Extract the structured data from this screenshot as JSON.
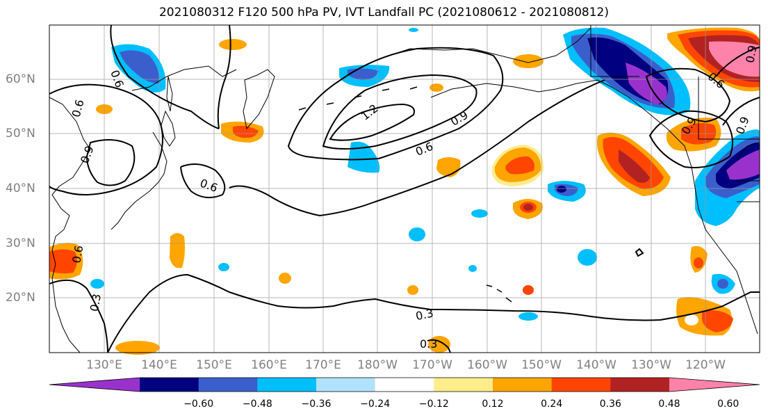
{
  "title": "2021080312 F120 500 hPa PV, IVT Landfall PC (2021080612 - 2021080812)",
  "lat_ticks": [
    "60°N",
    "50°N",
    "40°N",
    "30°N",
    "20°N"
  ],
  "lon_ticks": [
    "130°E",
    "140°E",
    "150°E",
    "160°E",
    "170°E",
    "180°W",
    "170°W",
    "160°W",
    "150°W",
    "140°W",
    "130°W",
    "120°W"
  ],
  "contour_labels": [
    "1.2",
    "0.9",
    "0.6",
    "0.6",
    "0.9",
    "0.6",
    "0.6",
    "0.3",
    "0.3",
    "0.3",
    "0.6",
    "0.9",
    "0.6",
    "0.9",
    "0.9"
  ],
  "colorbar": {
    "labels": [
      "−0.60",
      "−0.48",
      "−0.36",
      "−0.24",
      "−0.12",
      "0.12",
      "0.24",
      "0.36",
      "0.48",
      "0.60"
    ],
    "colors": [
      "#9932CC",
      "#000080",
      "#3A5FCD",
      "#00BFFF",
      "#B0E2FF",
      "#FFFFFF",
      "#FFEC8B",
      "#FFA500",
      "#FF4500",
      "#B22222",
      "#FF82AB"
    ]
  }
}
